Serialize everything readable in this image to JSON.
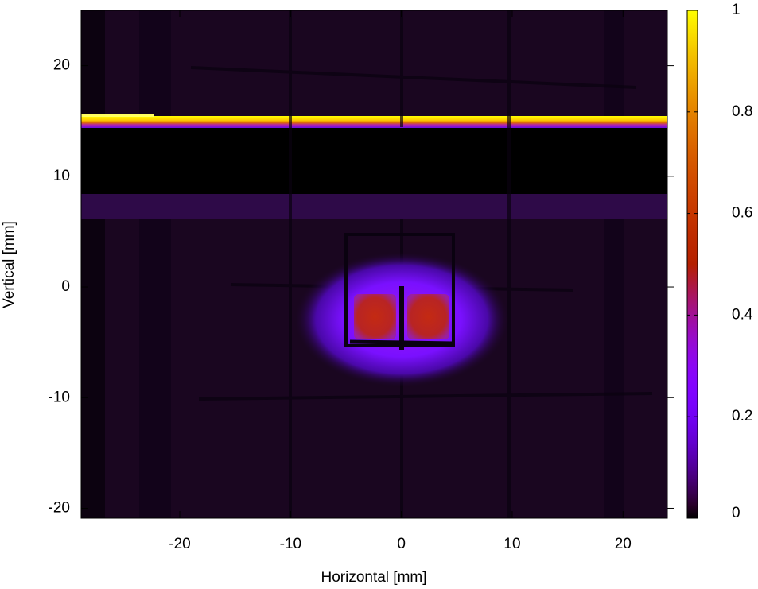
{
  "chart_data": {
    "type": "heatmap",
    "xlabel": "Horizontal [mm]",
    "ylabel": "Vertical [mm]",
    "xlim": [
      -28.9,
      24
    ],
    "xticks": [
      -20,
      -10,
      0,
      10,
      20
    ],
    "ylim": [
      -20.9,
      25
    ],
    "yticks": [
      -20,
      -10,
      0,
      10,
      20
    ],
    "colorbar": {
      "lim": [
        0,
        1
      ],
      "ticks": [
        0,
        0.2,
        0.4,
        0.6,
        0.8,
        1
      ],
      "palette": "gnuplot"
    }
  }
}
